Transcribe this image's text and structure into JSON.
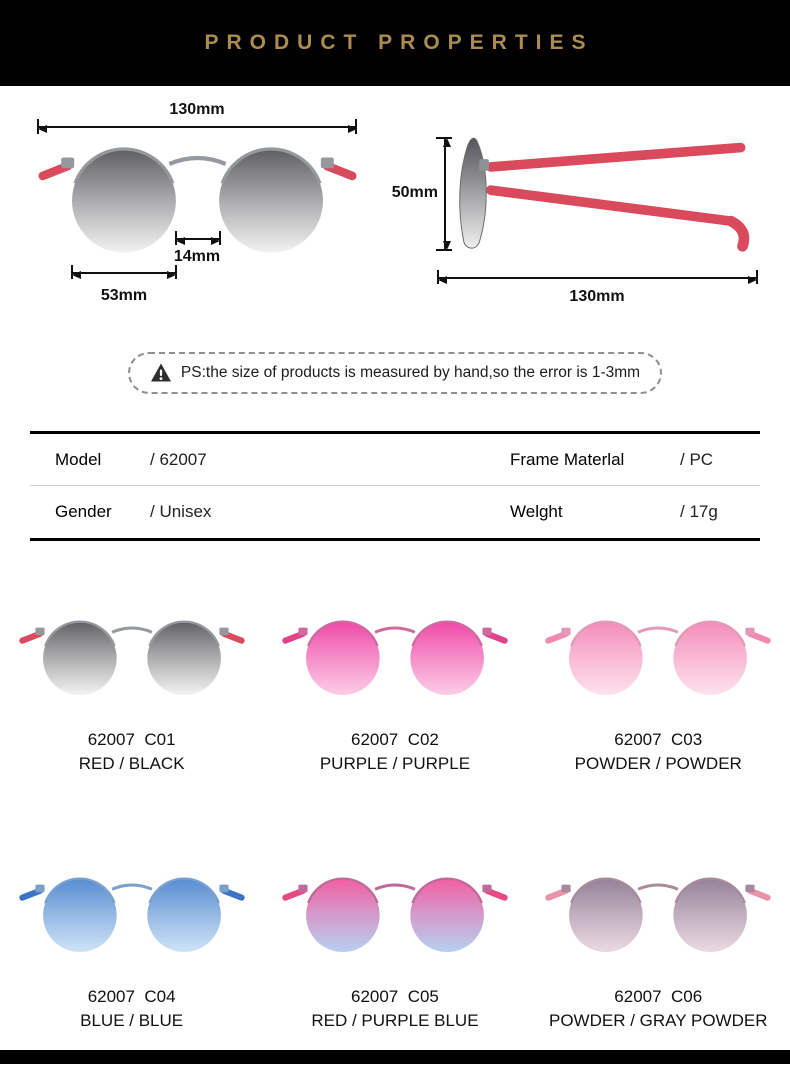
{
  "header": {
    "title": "PRODUCT PROPERTIES"
  },
  "colors": {
    "topbar_bg": "#000000",
    "title_gold": "#ab8c50",
    "arrow": "#111111"
  },
  "measurements": {
    "frame_width": "130mm",
    "bridge_width": "14mm",
    "lens_width": "53mm",
    "lens_height": "50mm",
    "temple_length": "130mm"
  },
  "note": {
    "text": "PS:the size of products is measured by hand,so the error is 1-3mm"
  },
  "specs": {
    "rows": [
      {
        "label": "Model",
        "value": "/ 62007",
        "label2": "Frame Materlal",
        "value2": "/ PC"
      },
      {
        "label": "Gender",
        "value": "/ Unisex",
        "label2": "Welght",
        "value2": "/ 17g"
      }
    ]
  },
  "diagram_colors": {
    "lens_top": "#54545a",
    "lens_bottom": "#efefef",
    "temple": "#d84a5c",
    "rim": "#95999e"
  },
  "variants": [
    {
      "code": "62007  C01",
      "name": "RED / BLACK",
      "colors": {
        "lens_top": "#58585c",
        "lens_bottom": "#f0f0f0",
        "temple": "#d84a5c",
        "rim": "#95999e"
      }
    },
    {
      "code": "62007  C02",
      "name": "PURPLE / PURPLE",
      "colors": {
        "lens_top": "#ee3fa4",
        "lens_bottom": "#fbc4e2",
        "temple": "#e04388",
        "rim": "#d06a9e"
      }
    },
    {
      "code": "62007  C03",
      "name": "POWDER / POWDER",
      "colors": {
        "lens_top": "#f286b6",
        "lens_bottom": "#fddcea",
        "temple": "#f08ab0",
        "rim": "#e39ab8"
      }
    },
    {
      "code": "62007  C04",
      "name": "BLUE / BLUE",
      "colors": {
        "lens_top": "#4d86cc",
        "lens_bottom": "#c6def5",
        "temple": "#3f72c4",
        "rim": "#7aa0d0"
      }
    },
    {
      "code": "62007  C05",
      "name": "RED / PURPLE BLUE",
      "colors": {
        "lens_top": "#f2569c",
        "lens_bottom": "#aac8ee",
        "temple": "#e64a80",
        "rim": "#c06a9a"
      }
    },
    {
      "code": "62007  C06",
      "name": "POWDER / GRAY POWDER",
      "colors": {
        "lens_top": "#8d7a92",
        "lens_bottom": "#e8d2de",
        "temple": "#ea92a8",
        "rim": "#a88a9c"
      }
    }
  ]
}
